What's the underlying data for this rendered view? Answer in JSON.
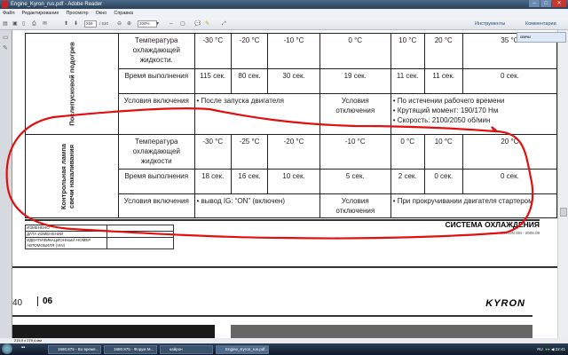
{
  "window": {
    "title": "Engine_Kyron_rus.pdf - Adobe Reader"
  },
  "menu": [
    "Файл",
    "Редактирование",
    "Просмотр",
    "Окно",
    "Справка"
  ],
  "toolbar": {
    "page_current": "259",
    "page_total": "/ 530",
    "zoom": "200%",
    "tools_label": "Инструменты",
    "comments_label": "Комментарии"
  },
  "search": {
    "value": "свечи"
  },
  "table": {
    "group1": "Послепусковой подогрев",
    "group2": "Контрольная лампа свечи накаливания",
    "r1_label": "Температура охлаждающей жидкости.",
    "r1": [
      "-30 °C",
      "-20 °C",
      "-10 °C",
      "0 °C",
      "10 °C",
      "20 °C",
      "35 °C"
    ],
    "r2_label": "Время выполнения",
    "r2": [
      "115 сек.",
      "80 сек.",
      "30 сек.",
      "19 сек.",
      "11 сек.",
      "11 сек.",
      "0 сек."
    ],
    "r3_label": "Условия включения",
    "r3_value": "• После запуска двигателя",
    "r3_off_label": "Условия отключения",
    "r3_off": [
      "• По истечении рабочего времени",
      "• Крутящий момент: 190/170 Нм",
      "• Скорость: 2100/2050 об/мин"
    ],
    "r4_label": "Температура охлаждающей жидкости",
    "r4": [
      "-30 °C",
      "-25 °C",
      "-20  °C",
      "-10 °C",
      "0 °C",
      "10 °C",
      "20 °C"
    ],
    "r5_label": "Время выполнения",
    "r5": [
      "18 сек.",
      "16 сек.",
      "10 сек.",
      "5 сек.",
      "2 сек.",
      "0 сек.",
      "0 сек."
    ],
    "r6_label": "Условия включения",
    "r6_value": "• вывод IG: “ON” (включен)",
    "r6_off_label": "Условия отключения",
    "r6_off": "• При прокручивании двигателя стартером"
  },
  "footer": {
    "changed": "ИЗМЕНЕНО",
    "date": "ДАТА ИЗМЕНЕНИЙ",
    "vin": "ИДЕНТИФИКАЦИОННЫЙ НОМЕР АВТОМОБИЛЯ (VIN)",
    "section": "СИСТЕМА ОХЛАЖДЕНИЯ",
    "sub": "KYRON SM - 2005.09",
    "page": "40",
    "chapter": "06",
    "brand": "KYRON"
  },
  "status": {
    "size": "215,9 x 279,4 мм"
  },
  "taskbar": {
    "tasks": [
      "1680.875 - Во время...",
      "1680.875 - Форум M...",
      "кайрон",
      "Engine_Kyron_rus.pdf..."
    ],
    "lang": "RU",
    "time": "22:41"
  },
  "annotation_color": "#e01010"
}
